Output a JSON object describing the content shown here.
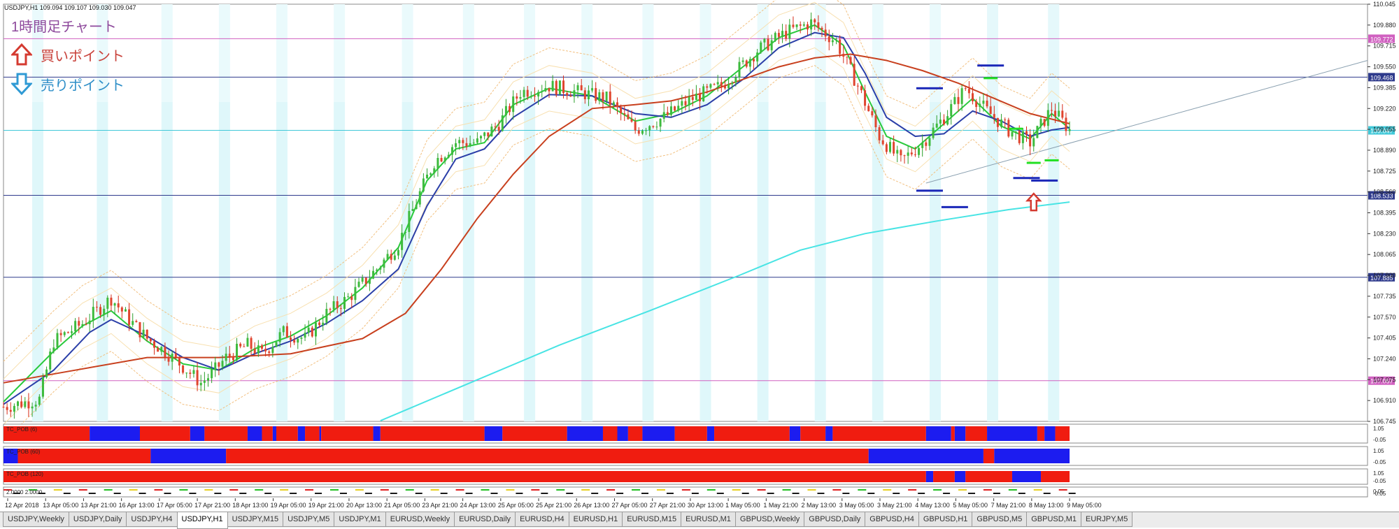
{
  "window": {
    "header": "USDJPY,H1  109.094 109.107 109.030 109.047"
  },
  "annotation": {
    "title": "1時間足チャート",
    "buy_label": "買いポイント",
    "sell_label": "売りポイント",
    "title_color": "#8e4a9c",
    "buy_color": "#c9433c",
    "sell_color": "#2f8fc8"
  },
  "chart_data": {
    "type": "candlestick",
    "symbol": "USDJPY",
    "timeframe": "H1",
    "ohlc_header": {
      "open": 109.094,
      "high": 109.107,
      "low": 109.03,
      "close": 109.047
    },
    "ylim": [
      106.745,
      110.045
    ],
    "y_ticks": [
      "110.045",
      "109.880",
      "109.715",
      "109.550",
      "109.385",
      "109.220",
      "109.055",
      "108.890",
      "108.725",
      "108.560",
      "108.395",
      "108.230",
      "108.065",
      "107.900",
      "107.735",
      "107.570",
      "107.405",
      "107.240",
      "107.075",
      "106.910",
      "106.745"
    ],
    "x_ticks": [
      "12 Apr 2018",
      "13 Apr 05:00",
      "13 Apr 21:00",
      "16 Apr 13:00",
      "17 Apr 05:00",
      "17 Apr 21:00",
      "18 Apr 13:00",
      "19 Apr 05:00",
      "19 Apr 21:00",
      "20 Apr 13:00",
      "21 Apr 05:00",
      "23 Apr 21:00",
      "24 Apr 13:00",
      "25 Apr 05:00",
      "25 Apr 21:00",
      "26 Apr 13:00",
      "27 Apr 05:00",
      "27 Apr 21:00",
      "30 Apr 13:00",
      "1 May 05:00",
      "1 May 21:00",
      "2 May 13:00",
      "3 May 05:00",
      "3 May 21:00",
      "4 May 13:00",
      "5 May 05:00",
      "7 May 21:00",
      "8 May 13:00",
      "9 May 05:00"
    ],
    "horizontal_levels": [
      {
        "value": "109.772",
        "color": "#d060c0"
      },
      {
        "value": "109.468",
        "color": "#2e3a8c"
      },
      {
        "value": "109.047",
        "color": "#40c8d8"
      },
      {
        "value": "108.533",
        "color": "#2e3a8c"
      },
      {
        "value": "107.885",
        "color": "#2e3a8c"
      },
      {
        "value": "107.067",
        "color": "#d060c0"
      }
    ],
    "price_path": [
      [
        0,
        106.86
      ],
      [
        10,
        106.92
      ],
      [
        14,
        107.38
      ],
      [
        22,
        107.52
      ],
      [
        30,
        107.72
      ],
      [
        35,
        107.55
      ],
      [
        40,
        107.4
      ],
      [
        45,
        107.3
      ],
      [
        50,
        107.18
      ],
      [
        55,
        107.05
      ],
      [
        58,
        107.12
      ],
      [
        62,
        107.25
      ],
      [
        68,
        107.35
      ],
      [
        72,
        107.28
      ],
      [
        78,
        107.45
      ],
      [
        84,
        107.4
      ],
      [
        90,
        107.6
      ],
      [
        96,
        107.72
      ],
      [
        104,
        107.95
      ],
      [
        110,
        108.15
      ],
      [
        116,
        108.55
      ],
      [
        120,
        108.8
      ],
      [
        126,
        108.95
      ],
      [
        132,
        108.95
      ],
      [
        138,
        109.1
      ],
      [
        144,
        109.35
      ],
      [
        152,
        109.4
      ],
      [
        160,
        109.35
      ],
      [
        168,
        109.3
      ],
      [
        176,
        109.05
      ],
      [
        184,
        109.15
      ],
      [
        192,
        109.3
      ],
      [
        200,
        109.4
      ],
      [
        210,
        109.68
      ],
      [
        218,
        109.82
      ],
      [
        225,
        109.9
      ],
      [
        232,
        109.75
      ],
      [
        238,
        109.4
      ],
      [
        244,
        109.0
      ],
      [
        250,
        108.8
      ],
      [
        256,
        108.95
      ],
      [
        262,
        109.15
      ],
      [
        268,
        109.38
      ],
      [
        274,
        109.2
      ],
      [
        280,
        109.05
      ],
      [
        286,
        108.95
      ],
      [
        292,
        109.22
      ],
      [
        297,
        109.05
      ]
    ],
    "series": [
      {
        "name": "",
        "color": "#2aca3c",
        "path": [
          [
            0,
            106.9
          ],
          [
            14,
            107.3
          ],
          [
            22,
            107.5
          ],
          [
            30,
            107.62
          ],
          [
            40,
            107.38
          ],
          [
            50,
            107.2
          ],
          [
            60,
            107.15
          ],
          [
            70,
            107.32
          ],
          [
            80,
            107.42
          ],
          [
            90,
            107.58
          ],
          [
            100,
            107.8
          ],
          [
            110,
            108.12
          ],
          [
            118,
            108.65
          ],
          [
            126,
            108.9
          ],
          [
            134,
            108.95
          ],
          [
            142,
            109.25
          ],
          [
            152,
            109.38
          ],
          [
            164,
            109.32
          ],
          [
            176,
            109.12
          ],
          [
            186,
            109.18
          ],
          [
            196,
            109.32
          ],
          [
            206,
            109.55
          ],
          [
            216,
            109.78
          ],
          [
            226,
            109.88
          ],
          [
            234,
            109.72
          ],
          [
            240,
            109.35
          ],
          [
            246,
            109.0
          ],
          [
            254,
            108.9
          ],
          [
            262,
            109.1
          ],
          [
            270,
            109.3
          ],
          [
            278,
            109.08
          ],
          [
            286,
            108.98
          ],
          [
            292,
            109.18
          ],
          [
            297,
            109.06
          ]
        ]
      },
      {
        "name": "",
        "color": "#2b3fa8",
        "path": [
          [
            0,
            106.88
          ],
          [
            14,
            107.15
          ],
          [
            24,
            107.45
          ],
          [
            30,
            107.55
          ],
          [
            40,
            107.42
          ],
          [
            50,
            107.25
          ],
          [
            60,
            107.15
          ],
          [
            70,
            107.28
          ],
          [
            80,
            107.38
          ],
          [
            90,
            107.52
          ],
          [
            100,
            107.7
          ],
          [
            110,
            107.95
          ],
          [
            118,
            108.45
          ],
          [
            126,
            108.82
          ],
          [
            134,
            108.9
          ],
          [
            142,
            109.15
          ],
          [
            152,
            109.33
          ],
          [
            164,
            109.32
          ],
          [
            176,
            109.18
          ],
          [
            186,
            109.15
          ],
          [
            196,
            109.25
          ],
          [
            206,
            109.45
          ],
          [
            216,
            109.7
          ],
          [
            226,
            109.82
          ],
          [
            234,
            109.78
          ],
          [
            240,
            109.5
          ],
          [
            246,
            109.15
          ],
          [
            254,
            109.0
          ],
          [
            262,
            109.02
          ],
          [
            270,
            109.2
          ],
          [
            278,
            109.12
          ],
          [
            286,
            109.0
          ],
          [
            292,
            109.05
          ],
          [
            297,
            109.07
          ]
        ]
      },
      {
        "name": "",
        "color": "#c8401e",
        "path": [
          [
            0,
            107.05
          ],
          [
            20,
            107.15
          ],
          [
            40,
            107.25
          ],
          [
            60,
            107.25
          ],
          [
            80,
            107.28
          ],
          [
            100,
            107.4
          ],
          [
            112,
            107.6
          ],
          [
            122,
            107.95
          ],
          [
            132,
            108.35
          ],
          [
            142,
            108.7
          ],
          [
            152,
            109.0
          ],
          [
            164,
            109.22
          ],
          [
            176,
            109.25
          ],
          [
            186,
            109.28
          ],
          [
            196,
            109.35
          ],
          [
            206,
            109.45
          ],
          [
            216,
            109.55
          ],
          [
            226,
            109.62
          ],
          [
            236,
            109.65
          ],
          [
            246,
            109.6
          ],
          [
            256,
            109.52
          ],
          [
            266,
            109.42
          ],
          [
            276,
            109.3
          ],
          [
            286,
            109.18
          ],
          [
            297,
            109.1
          ]
        ]
      },
      {
        "name": "",
        "color": "#48e4e4",
        "path": [
          [
            105,
            106.75
          ],
          [
            130,
            107.05
          ],
          [
            155,
            107.35
          ],
          [
            180,
            107.62
          ],
          [
            205,
            107.9
          ],
          [
            222,
            108.1
          ],
          [
            240,
            108.23
          ],
          [
            260,
            108.33
          ],
          [
            280,
            108.42
          ],
          [
            297,
            108.48
          ]
        ]
      }
    ],
    "trendline": {
      "from": [
        257,
        108.63
      ],
      "to": [
        380,
        109.6
      ],
      "color": "#8aa0b0"
    },
    "markers": {
      "blue_dashes": [
        [
          258,
          109.38
        ],
        [
          258,
          108.57
        ],
        [
          265,
          108.44
        ],
        [
          275,
          109.56
        ],
        [
          285,
          108.67
        ],
        [
          290,
          108.65
        ]
      ],
      "green_dashes": [
        [
          275,
          109.46
        ],
        [
          282,
          109.06
        ],
        [
          287,
          108.79
        ],
        [
          292,
          108.81
        ]
      ],
      "buy_arrow": [
        287,
        108.48
      ]
    },
    "indicators": [
      {
        "label": "TC_POB (6)",
        "ylim": [
          "1.05",
          "-0.05"
        ],
        "segments": [
          [
            "r",
            0,
            24
          ],
          [
            "b",
            24,
            38
          ],
          [
            "r",
            38,
            52
          ],
          [
            "b",
            52,
            56
          ],
          [
            "r",
            56,
            68
          ],
          [
            "b",
            68,
            72
          ],
          [
            "r",
            72,
            75
          ],
          [
            "b",
            75,
            76
          ],
          [
            "r",
            76,
            82
          ],
          [
            "b",
            82,
            84
          ],
          [
            "r",
            84,
            88
          ],
          [
            "b",
            88,
            88.5
          ],
          [
            "r",
            88.5,
            103
          ],
          [
            "b",
            103,
            105
          ],
          [
            "r",
            105,
            134
          ],
          [
            "b",
            134,
            139
          ],
          [
            "r",
            139,
            157
          ],
          [
            "b",
            157,
            167
          ],
          [
            "r",
            167,
            171
          ],
          [
            "b",
            171,
            174
          ],
          [
            "r",
            174,
            178
          ],
          [
            "b",
            178,
            187
          ],
          [
            "r",
            187,
            196
          ],
          [
            "b",
            196,
            198
          ],
          [
            "r",
            198,
            219
          ],
          [
            "b",
            219,
            222
          ],
          [
            "r",
            222,
            229
          ],
          [
            "b",
            229,
            231
          ],
          [
            "r",
            231,
            257
          ],
          [
            "b",
            257,
            264
          ],
          [
            "r",
            264,
            265
          ],
          [
            "b",
            265,
            268
          ],
          [
            "r",
            268,
            274
          ],
          [
            "b",
            274,
            288
          ],
          [
            "r",
            288,
            290
          ],
          [
            "b",
            290,
            293
          ],
          [
            "r",
            293,
            297
          ]
        ]
      },
      {
        "label": "TC_POB (60)",
        "ylim": [
          "1.05",
          "-0.05"
        ],
        "segments": [
          [
            "b",
            0,
            4
          ],
          [
            "r",
            4,
            41
          ],
          [
            "b",
            41,
            62
          ],
          [
            "r",
            62,
            241
          ],
          [
            "b",
            241,
            273
          ],
          [
            "r",
            273,
            276
          ],
          [
            "b",
            276,
            297
          ]
        ]
      },
      {
        "label": "TC_POB (120)",
        "ylim": [
          "1.05",
          "-0.05"
        ],
        "segments": [
          [
            "r",
            0,
            257
          ],
          [
            "b",
            257,
            259
          ],
          [
            "r",
            259,
            265
          ],
          [
            "b",
            265,
            268
          ],
          [
            "r",
            268,
            281
          ],
          [
            "b",
            281,
            289
          ],
          [
            "r",
            289,
            297
          ]
        ]
      },
      {
        "label": "2.0000 2.0000",
        "ylim": [
          "0.05",
          "-0.05"
        ],
        "segments": []
      }
    ]
  },
  "tabs": [
    {
      "label": "USDJPY,Weekly",
      "active": false
    },
    {
      "label": "USDJPY,Daily",
      "active": false
    },
    {
      "label": "USDJPY,H4",
      "active": false
    },
    {
      "label": "USDJPY,H1",
      "active": true
    },
    {
      "label": "USDJPY,M15",
      "active": false
    },
    {
      "label": "USDJPY,M5",
      "active": false
    },
    {
      "label": "USDJPY,M1",
      "active": false
    },
    {
      "label": "EURUSD,Weekly",
      "active": false
    },
    {
      "label": "EURUSD,Daily",
      "active": false
    },
    {
      "label": "EURUSD,H4",
      "active": false
    },
    {
      "label": "EURUSD,H1",
      "active": false
    },
    {
      "label": "EURUSD,M15",
      "active": false
    },
    {
      "label": "EURUSD,M1",
      "active": false
    },
    {
      "label": "GBPUSD,Weekly",
      "active": false
    },
    {
      "label": "GBPUSD,Daily",
      "active": false
    },
    {
      "label": "GBPUSD,H4",
      "active": false
    },
    {
      "label": "GBPUSD,H1",
      "active": false
    },
    {
      "label": "GBPUSD,M5",
      "active": false
    },
    {
      "label": "GBPUSD,M1",
      "active": false
    },
    {
      "label": "EURJPY,M5",
      "active": false
    }
  ]
}
